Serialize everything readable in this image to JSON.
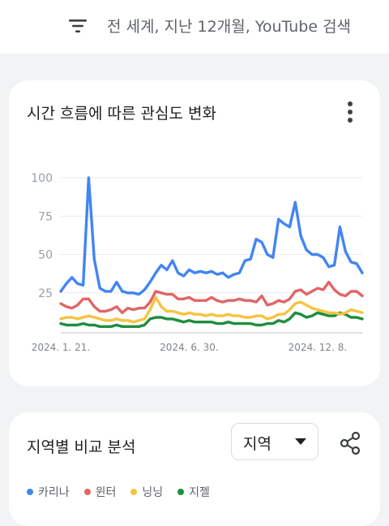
{
  "header": {
    "filter_text": "전 세계, 지난 12개월, YouTube 검색"
  },
  "interest_card": {
    "title": "시간 흐름에 따른 관심도 변화"
  },
  "region_card": {
    "title": "지역별 비교 분석",
    "select_value": "지역"
  },
  "chart_data": {
    "type": "line",
    "title": "",
    "xlabel": "",
    "ylabel": "",
    "ylim": [
      0,
      100
    ],
    "y_ticks": [
      25,
      50,
      75,
      100
    ],
    "x_tick_labels": [
      "2024. 1. 21.",
      "2024. 6. 30.",
      "2024. 12. 8."
    ],
    "x_tick_indices": [
      0,
      23,
      46
    ],
    "grid": true,
    "legend_position": "bottom",
    "series": [
      {
        "name": "카리나",
        "color": "#4285f4",
        "values": [
          26,
          31,
          35,
          31,
          30,
          100,
          47,
          28,
          26,
          26,
          32,
          26,
          25,
          25,
          24,
          27,
          32,
          38,
          43,
          40,
          46,
          38,
          36,
          40,
          38,
          39,
          38,
          39,
          37,
          38,
          35,
          37,
          38,
          46,
          47,
          60,
          58,
          50,
          48,
          73,
          70,
          68,
          84,
          62,
          53,
          50,
          50,
          48,
          42,
          43,
          68,
          52,
          45,
          44,
          38
        ]
      },
      {
        "name": "윈터",
        "color": "#e06666",
        "values": [
          18,
          16,
          15,
          17,
          21,
          21,
          16,
          13,
          13,
          14,
          16,
          12,
          15,
          14,
          15,
          15,
          19,
          26,
          25,
          24,
          24,
          21,
          21,
          22,
          20,
          20,
          20,
          22,
          20,
          19,
          20,
          20,
          21,
          20,
          20,
          19,
          23,
          17,
          18,
          20,
          19,
          21,
          26,
          27,
          24,
          26,
          28,
          27,
          32,
          27,
          24,
          23,
          26,
          26,
          23
        ]
      },
      {
        "name": "닝닝",
        "color": "#f6c342",
        "values": [
          8,
          9,
          9,
          8,
          9,
          10,
          9,
          8,
          7,
          7,
          8,
          7,
          7,
          6,
          7,
          8,
          14,
          22,
          16,
          13,
          13,
          12,
          11,
          12,
          11,
          11,
          10,
          11,
          10,
          10,
          11,
          10,
          10,
          9,
          9,
          10,
          10,
          8,
          9,
          11,
          11,
          14,
          18,
          19,
          17,
          15,
          14,
          13,
          12,
          12,
          11,
          12,
          14,
          13,
          12
        ]
      },
      {
        "name": "지젤",
        "color": "#1e8e3e",
        "values": [
          5,
          4,
          4,
          4,
          5,
          4,
          4,
          3,
          3,
          3,
          4,
          3,
          3,
          3,
          3,
          4,
          8,
          9,
          9,
          8,
          8,
          7,
          6,
          7,
          6,
          6,
          6,
          6,
          5,
          5,
          6,
          5,
          5,
          5,
          5,
          4,
          4,
          5,
          5,
          7,
          6,
          8,
          12,
          11,
          9,
          10,
          12,
          11,
          10,
          10,
          12,
          11,
          9,
          9,
          8
        ]
      }
    ]
  },
  "icons": {
    "filter": "filter-lines-icon",
    "more": "more-vert-icon",
    "dropdown": "triangle-down-icon",
    "share": "share-icon"
  }
}
